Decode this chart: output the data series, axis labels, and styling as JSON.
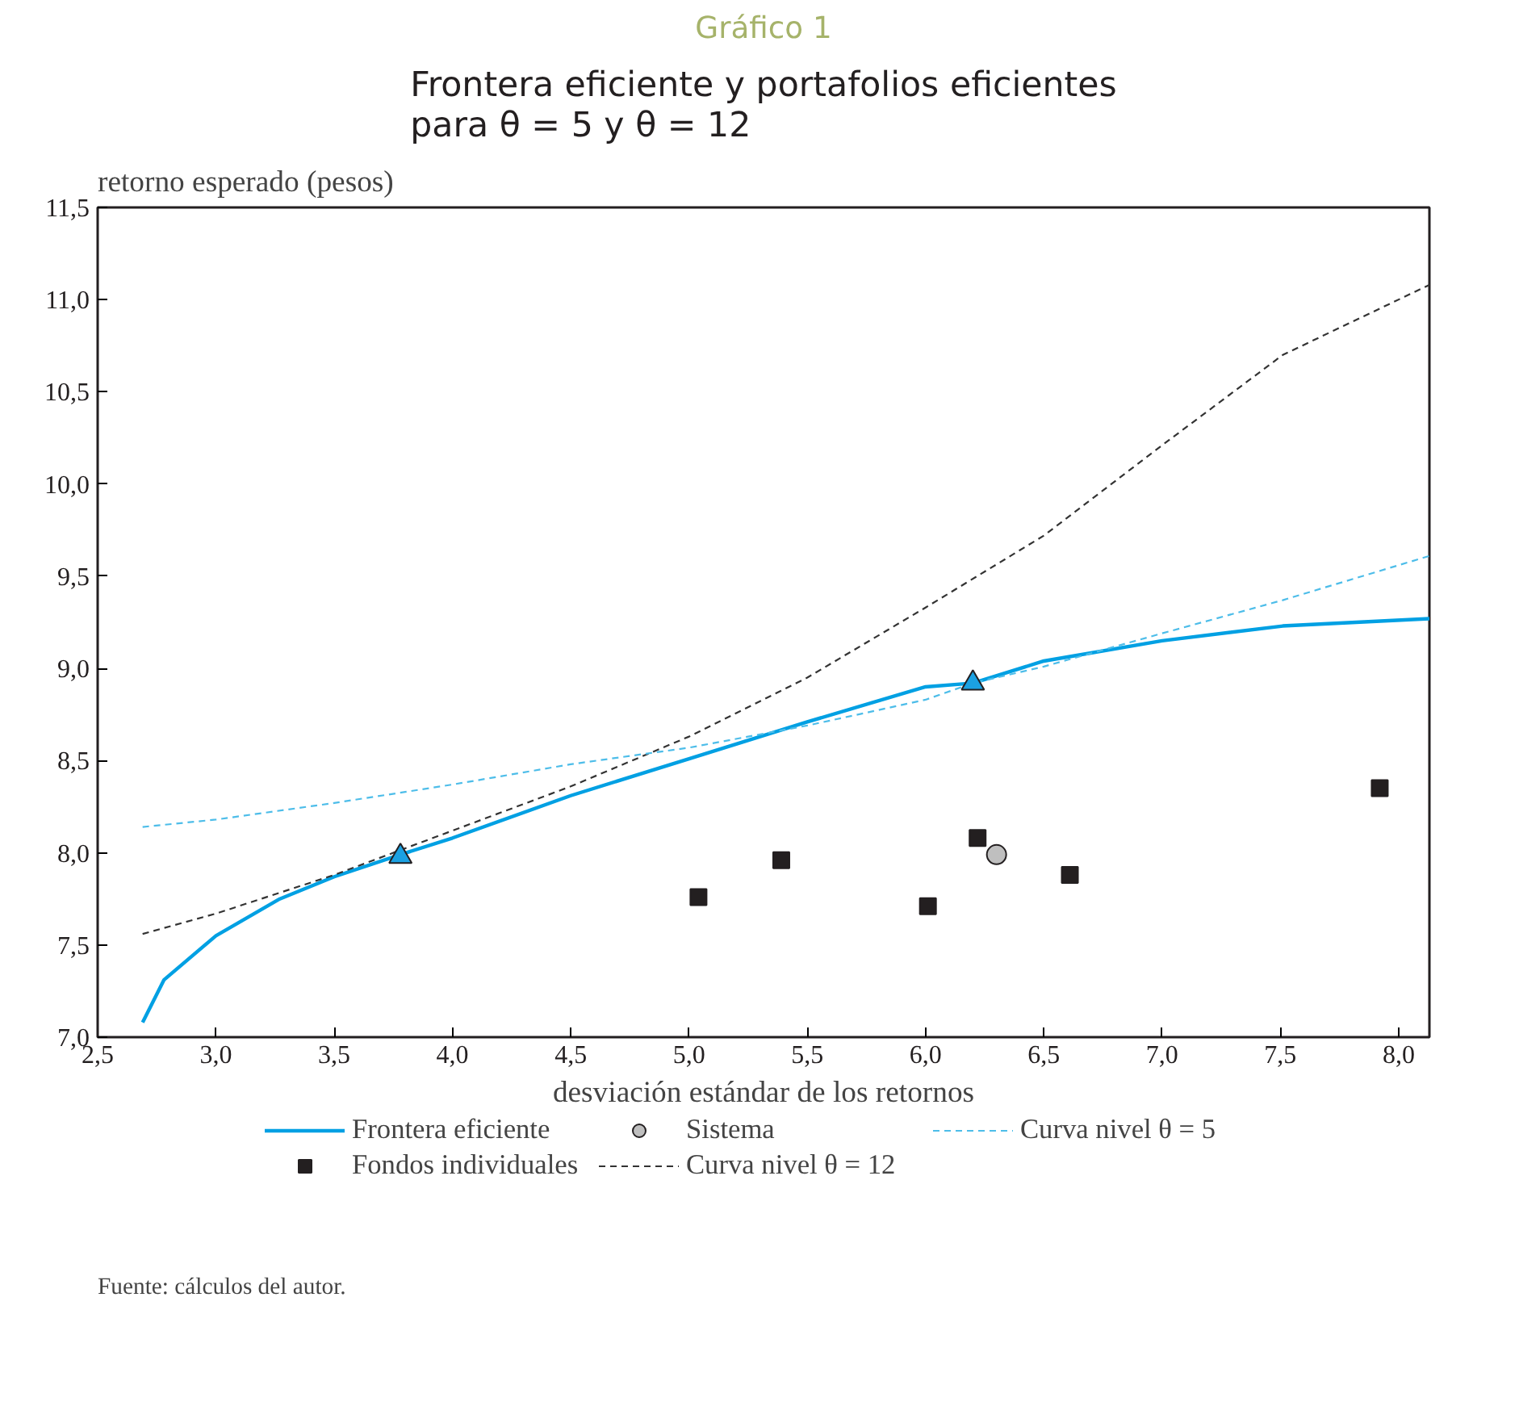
{
  "chart_data": {
    "type": "line",
    "title": "Gráfico 1",
    "subtitle": "Frontera eficiente y portafolios eficientes\npara θ = 5 y θ = 12",
    "xlabel": "desviación estándar de los retornos",
    "ylabel": "retorno esperado (pesos)",
    "xlim": [
      2.5,
      8.13
    ],
    "ylim": [
      7.0,
      11.5
    ],
    "xticks": [
      {
        "value": 2.5,
        "label": "2,5"
      },
      {
        "value": 3.0,
        "label": "3,0"
      },
      {
        "value": 3.5,
        "label": "3,5"
      },
      {
        "value": 4.0,
        "label": "4,0"
      },
      {
        "value": 4.5,
        "label": "4,5"
      },
      {
        "value": 5.0,
        "label": "5,0"
      },
      {
        "value": 5.5,
        "label": "5,5"
      },
      {
        "value": 6.0,
        "label": "6,0"
      },
      {
        "value": 6.5,
        "label": "6,5"
      },
      {
        "value": 7.0,
        "label": "7,0"
      },
      {
        "value": 7.5,
        "label": "7,5"
      },
      {
        "value": 8.0,
        "label": "8,0"
      }
    ],
    "yticks": [
      {
        "value": 7.0,
        "label": "7,0"
      },
      {
        "value": 7.5,
        "label": "7,5"
      },
      {
        "value": 8.0,
        "label": "8,0"
      },
      {
        "value": 8.5,
        "label": "8,5"
      },
      {
        "value": 9.0,
        "label": "9,0"
      },
      {
        "value": 9.5,
        "label": "9,5"
      },
      {
        "value": 10.0,
        "label": "10,0"
      },
      {
        "value": 10.5,
        "label": "10,5"
      },
      {
        "value": 11.0,
        "label": "11,0"
      },
      {
        "value": 11.5,
        "label": "11,5"
      }
    ],
    "grid": false,
    "legend": "bottom",
    "series": [
      {
        "name": "Frontera eficiente",
        "type": "line",
        "line_style": "solid",
        "color": "#00a0e3",
        "x": [
          2.69,
          2.78,
          3.0,
          3.27,
          3.5,
          3.78,
          4.0,
          4.5,
          5.0,
          5.5,
          6.0,
          6.2,
          6.5,
          7.0,
          7.51,
          8.13
        ],
        "values": [
          7.08,
          7.31,
          7.55,
          7.75,
          7.87,
          7.99,
          8.08,
          8.31,
          8.51,
          8.71,
          8.9,
          8.92,
          9.04,
          9.15,
          9.23,
          9.27
        ]
      },
      {
        "name": "Fondos individuales",
        "type": "scatter",
        "marker": "square",
        "color": "#231f20",
        "x": [
          5.04,
          5.39,
          6.01,
          6.22,
          6.61,
          7.92
        ],
        "values": [
          7.76,
          7.96,
          7.71,
          8.08,
          7.88,
          8.35
        ]
      },
      {
        "name": "Sistema",
        "type": "scatter",
        "marker": "circle",
        "color": "#bfbfbf",
        "x": [
          6.3
        ],
        "values": [
          7.99
        ]
      },
      {
        "name": "Curva nivel θ = 12",
        "type": "line",
        "line_style": "dashed",
        "color": "#333333",
        "x": [
          2.69,
          3.0,
          3.5,
          4.0,
          4.5,
          5.0,
          5.5,
          6.0,
          6.5,
          7.0,
          7.51,
          8.13
        ],
        "values": [
          7.56,
          7.67,
          7.88,
          8.12,
          8.36,
          8.63,
          8.95,
          9.33,
          9.72,
          10.21,
          10.7,
          11.08
        ]
      },
      {
        "name": "Curva nivel θ = 5",
        "type": "line",
        "line_style": "dashed",
        "color": "#4dbde9",
        "x": [
          2.69,
          3.0,
          3.5,
          4.0,
          4.5,
          5.0,
          5.5,
          6.0,
          6.2,
          6.5,
          7.0,
          7.51,
          8.13
        ],
        "values": [
          8.14,
          8.18,
          8.27,
          8.37,
          8.48,
          8.57,
          8.69,
          8.83,
          8.92,
          9.01,
          9.19,
          9.37,
          9.61
        ]
      },
      {
        "type": "scatter",
        "marker": "triangle",
        "color": "#1ba1e2",
        "x": [
          3.78,
          6.2
        ],
        "values": [
          7.98,
          8.92
        ]
      }
    ],
    "annotations": [
      "Fuente: cálculos del autor."
    ]
  }
}
